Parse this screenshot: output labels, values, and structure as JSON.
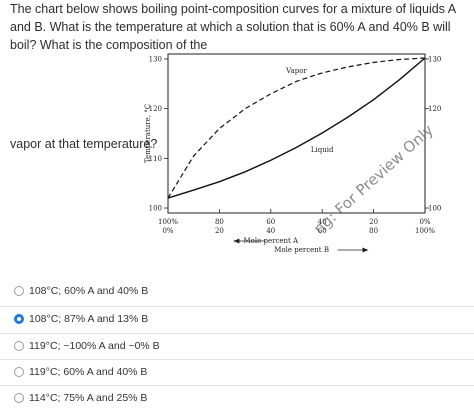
{
  "question": {
    "text": "The chart below shows boiling point-composition curves for a mixture of liquids A and B. What is the temperature at which a solution that is 60% A and 40% B will boil? What is the composition of the",
    "continuation": "vapor at that temperature?"
  },
  "chart_data": {
    "type": "line",
    "ylabel": "Temperature, °C",
    "ylim": [
      99,
      131
    ],
    "xlim": [
      0,
      100
    ],
    "y_ticks": [
      "130",
      "120",
      "110",
      "100"
    ],
    "right_ticks": [
      "130",
      "120",
      "100"
    ],
    "x_ticks_top": [
      "100%",
      "80",
      "60",
      "40",
      "20",
      "0%"
    ],
    "x_ticks_bottom": [
      "0%",
      "20",
      "40",
      "60",
      "80",
      "100%"
    ],
    "xlabel_a": "Mole percent A",
    "xlabel_b": "Mole percent B",
    "series": [
      {
        "name": "Vapor",
        "style": "dashed",
        "x": [
          0,
          10,
          20,
          30,
          40,
          50,
          60,
          70,
          80,
          90,
          100
        ],
        "y": [
          102,
          110.5,
          116,
          120,
          123,
          125.5,
          127.2,
          128.4,
          129.3,
          129.9,
          130.2
        ]
      },
      {
        "name": "Liquid",
        "style": "solid",
        "x": [
          0,
          10,
          20,
          30,
          40,
          50,
          60,
          70,
          80,
          90,
          100
        ],
        "y": [
          102,
          103.6,
          105.3,
          107.3,
          109.6,
          112.2,
          115.1,
          118.3,
          121.8,
          125.8,
          130.2
        ]
      }
    ]
  },
  "watermark": "ng: For Preview Only",
  "options": [
    {
      "label": "108°C; 60% A and 40% B",
      "selected": false
    },
    {
      "label": "108°C; 87% A and 13% B",
      "selected": true
    },
    {
      "label": "119°C; ~100% A and ~0% B",
      "selected": false
    },
    {
      "label": "119°C; 60% A and 40% B",
      "selected": false
    },
    {
      "label": "114°C; 75% A and 25% B",
      "selected": false
    }
  ],
  "colors": {
    "accent": "#1e7bd6",
    "text": "#2d2d2d"
  }
}
